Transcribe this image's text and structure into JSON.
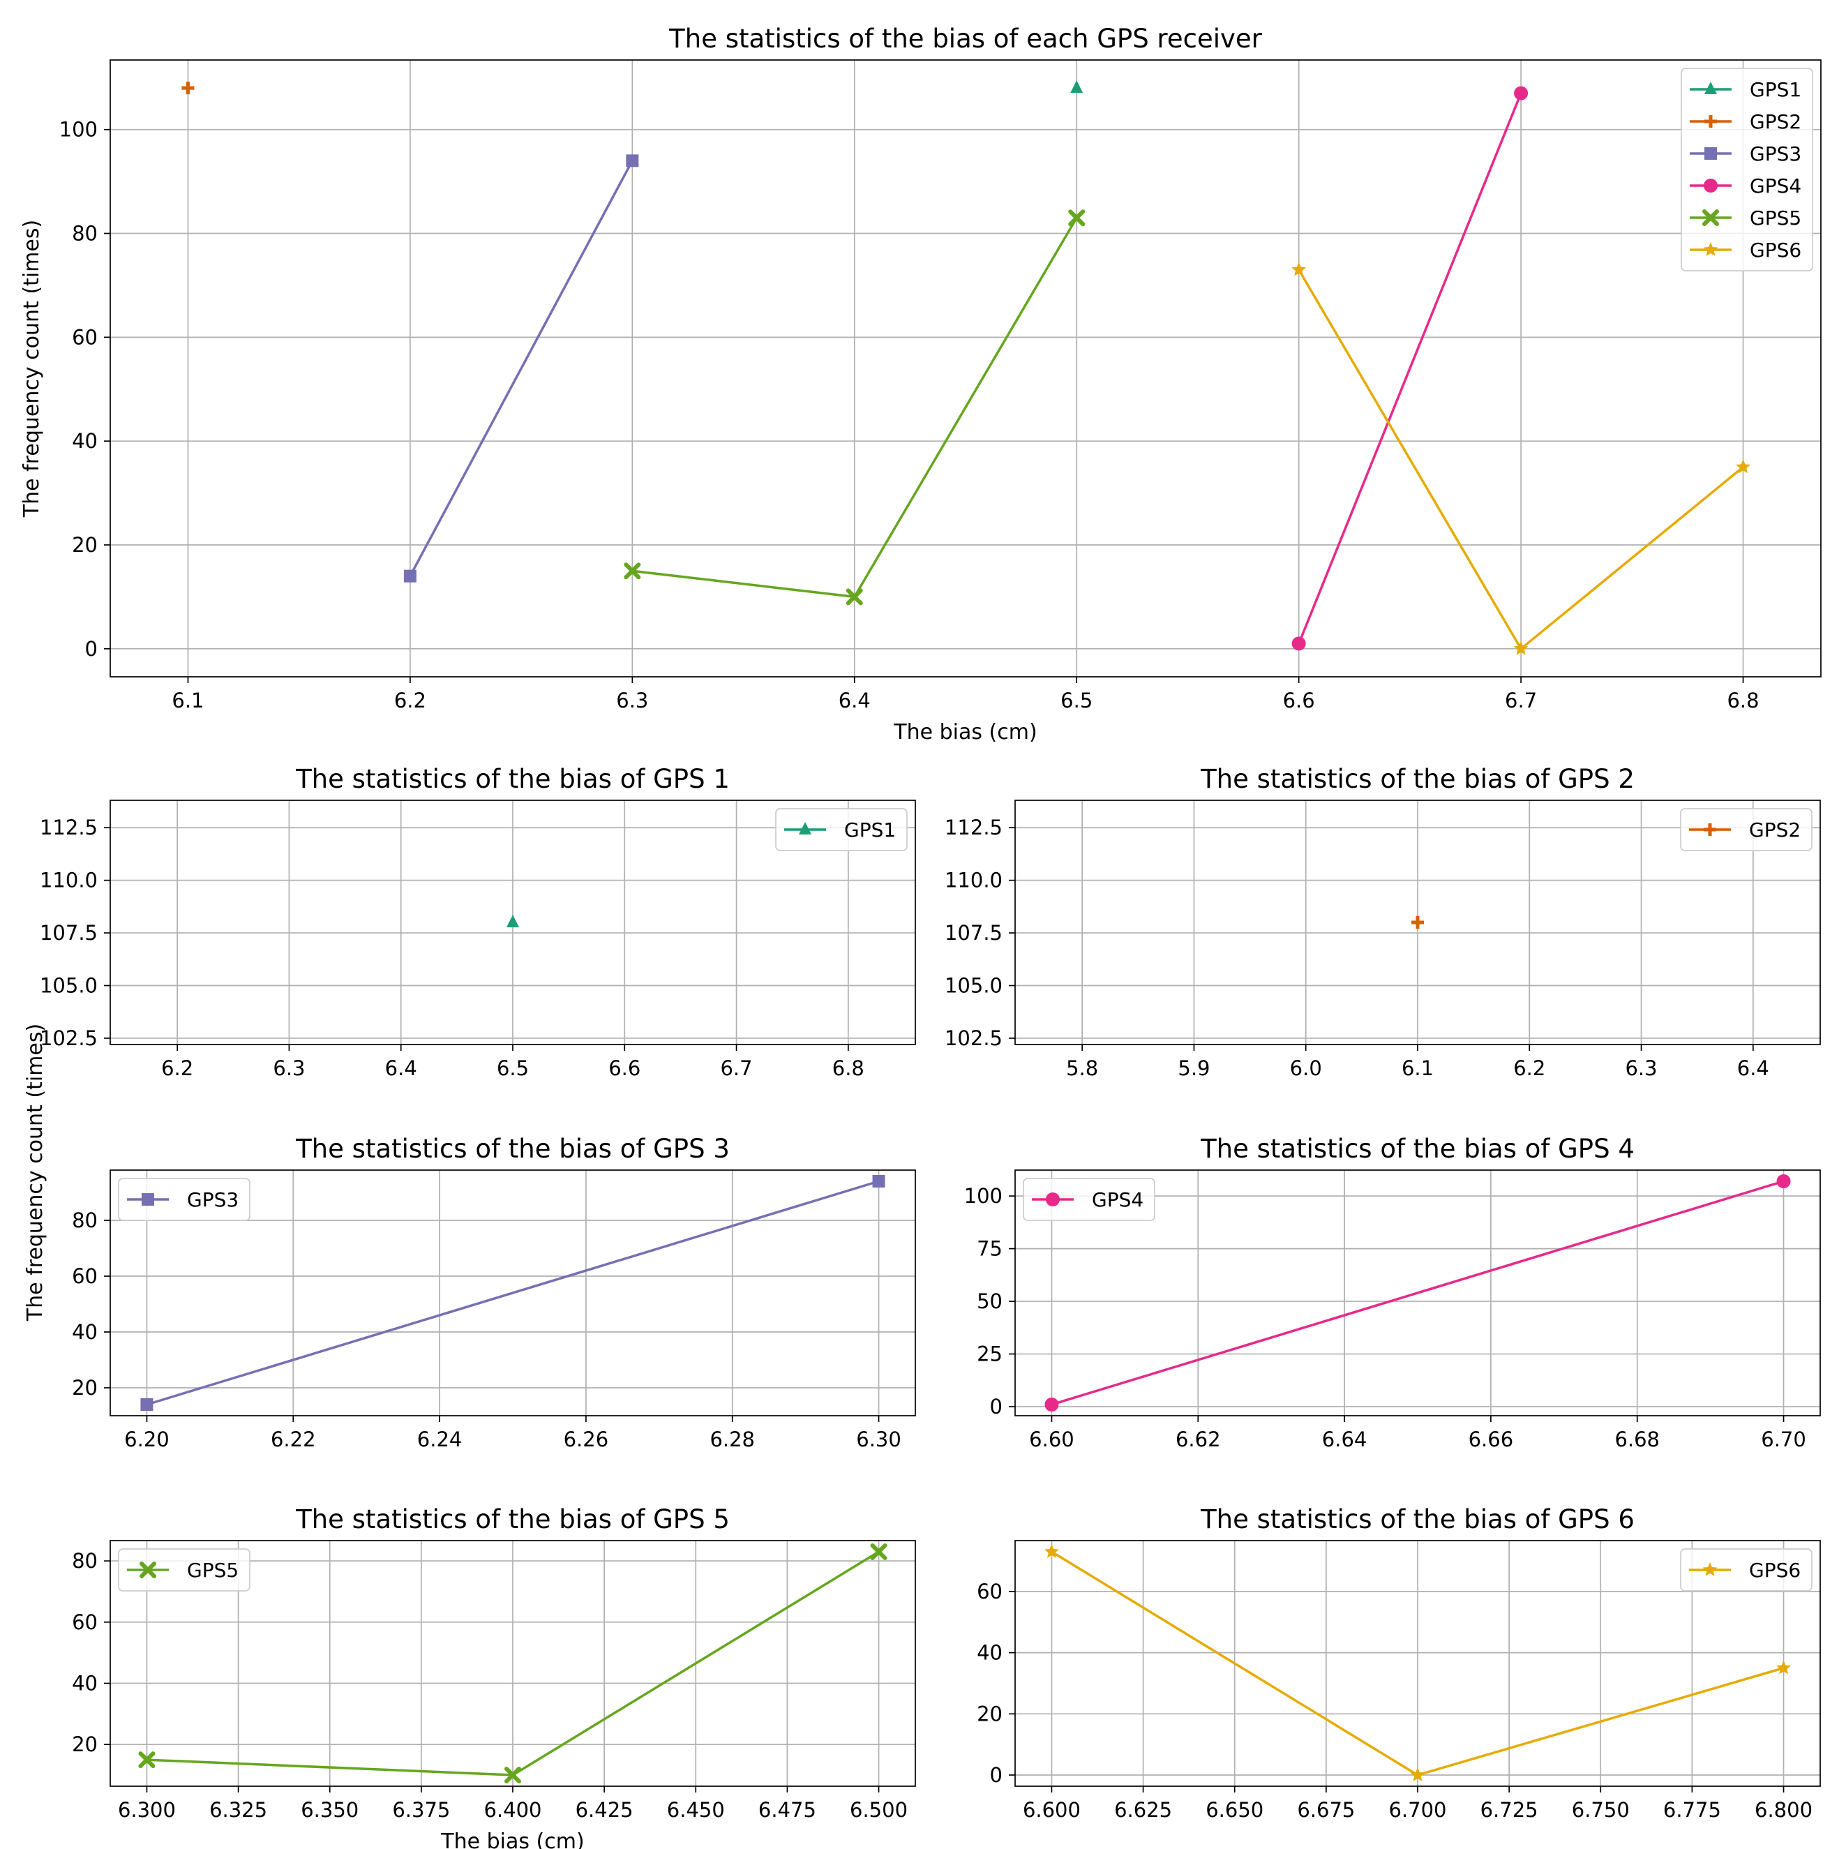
{
  "chart_data": [
    {
      "type": "line",
      "title": "The statistics of the bias of each GPS receiver",
      "xlabel": "The bias (cm)",
      "ylabel": "The frequency count (times)",
      "xlim": [
        6.065,
        6.835
      ],
      "ylim": [
        -5.4,
        113.4
      ],
      "xticks": [
        "6.1",
        "6.2",
        "6.3",
        "6.4",
        "6.5",
        "6.6",
        "6.7",
        "6.8"
      ],
      "yticks": [
        "0",
        "20",
        "40",
        "60",
        "80",
        "100"
      ],
      "legend_position": "top-right",
      "series": [
        {
          "name": "GPS1",
          "color": "#1b9e77",
          "marker": "triangle",
          "x": [
            6.5
          ],
          "y": [
            108
          ]
        },
        {
          "name": "GPS2",
          "color": "#d95f02",
          "marker": "plus",
          "x": [
            6.1
          ],
          "y": [
            108
          ]
        },
        {
          "name": "GPS3",
          "color": "#7570b3",
          "marker": "square",
          "x": [
            6.2,
            6.3
          ],
          "y": [
            14,
            94
          ]
        },
        {
          "name": "GPS4",
          "color": "#e7298a",
          "marker": "circle",
          "x": [
            6.6,
            6.7
          ],
          "y": [
            1,
            107
          ]
        },
        {
          "name": "GPS5",
          "color": "#66a61e",
          "marker": "x-filled",
          "x": [
            6.3,
            6.4,
            6.5
          ],
          "y": [
            15,
            10,
            83
          ]
        },
        {
          "name": "GPS6",
          "color": "#e6ab02",
          "marker": "star",
          "x": [
            6.6,
            6.7,
            6.8
          ],
          "y": [
            73,
            0,
            35
          ]
        }
      ]
    },
    {
      "type": "line",
      "title": "The statistics of the bias of GPS 1",
      "xlim": [
        6.14,
        6.86
      ],
      "ylim": [
        102.2,
        113.8
      ],
      "xticks": [
        "6.2",
        "6.3",
        "6.4",
        "6.5",
        "6.6",
        "6.7",
        "6.8"
      ],
      "yticks": [
        "102.5",
        "105.0",
        "107.5",
        "110.0",
        "112.5"
      ],
      "legend_position": "top-right",
      "series": [
        {
          "name": "GPS1",
          "color": "#1b9e77",
          "marker": "triangle",
          "x": [
            6.5
          ],
          "y": [
            108
          ]
        }
      ]
    },
    {
      "type": "line",
      "title": "The statistics of the bias of GPS 2",
      "xlim": [
        5.74,
        6.46
      ],
      "ylim": [
        102.2,
        113.8
      ],
      "xticks": [
        "5.8",
        "5.9",
        "6.0",
        "6.1",
        "6.2",
        "6.3",
        "6.4"
      ],
      "yticks": [
        "102.5",
        "105.0",
        "107.5",
        "110.0",
        "112.5"
      ],
      "legend_position": "top-right",
      "series": [
        {
          "name": "GPS2",
          "color": "#d95f02",
          "marker": "plus",
          "x": [
            6.1
          ],
          "y": [
            108
          ]
        }
      ]
    },
    {
      "type": "line",
      "title": "The statistics of the bias of GPS 3",
      "xlim": [
        6.195,
        6.305
      ],
      "ylim": [
        10,
        98
      ],
      "xticks": [
        "6.20",
        "6.22",
        "6.24",
        "6.26",
        "6.28",
        "6.30"
      ],
      "yticks": [
        "20",
        "40",
        "60",
        "80"
      ],
      "legend_position": "top-left",
      "series": [
        {
          "name": "GPS3",
          "color": "#7570b3",
          "marker": "square",
          "x": [
            6.2,
            6.3
          ],
          "y": [
            14,
            94
          ]
        }
      ]
    },
    {
      "type": "line",
      "title": "The statistics of the bias of GPS 4",
      "xlim": [
        6.595,
        6.705
      ],
      "ylim": [
        -4.3,
        112.3
      ],
      "xticks": [
        "6.60",
        "6.62",
        "6.64",
        "6.66",
        "6.68",
        "6.70"
      ],
      "yticks": [
        "0",
        "25",
        "50",
        "75",
        "100"
      ],
      "legend_position": "top-left",
      "series": [
        {
          "name": "GPS4",
          "color": "#e7298a",
          "marker": "circle",
          "x": [
            6.6,
            6.7
          ],
          "y": [
            1,
            107
          ]
        }
      ]
    },
    {
      "type": "line",
      "title": "The statistics of the bias of GPS 5",
      "xlim": [
        6.29,
        6.51
      ],
      "ylim": [
        6.35,
        86.65
      ],
      "xticks": [
        "6.300",
        "6.325",
        "6.350",
        "6.375",
        "6.400",
        "6.425",
        "6.450",
        "6.475",
        "6.500"
      ],
      "yticks": [
        "20",
        "40",
        "60",
        "80"
      ],
      "xlabel": "The bias (cm)",
      "legend_position": "top-left",
      "series": [
        {
          "name": "GPS5",
          "color": "#66a61e",
          "marker": "x-filled",
          "x": [
            6.3,
            6.4,
            6.5
          ],
          "y": [
            15,
            10,
            83
          ]
        }
      ]
    },
    {
      "type": "line",
      "title": "The statistics of the bias of GPS 6",
      "xlim": [
        6.59,
        6.81
      ],
      "ylim": [
        -3.65,
        76.65
      ],
      "xticks": [
        "6.600",
        "6.625",
        "6.650",
        "6.675",
        "6.700",
        "6.725",
        "6.750",
        "6.775",
        "6.800"
      ],
      "yticks": [
        "0",
        "20",
        "40",
        "60"
      ],
      "legend_position": "top-right",
      "series": [
        {
          "name": "GPS6",
          "color": "#e6ab02",
          "marker": "star",
          "x": [
            6.6,
            6.7,
            6.8
          ],
          "y": [
            73,
            0,
            35
          ]
        }
      ]
    }
  ],
  "shared_ylabel": "The frequency count (times)"
}
